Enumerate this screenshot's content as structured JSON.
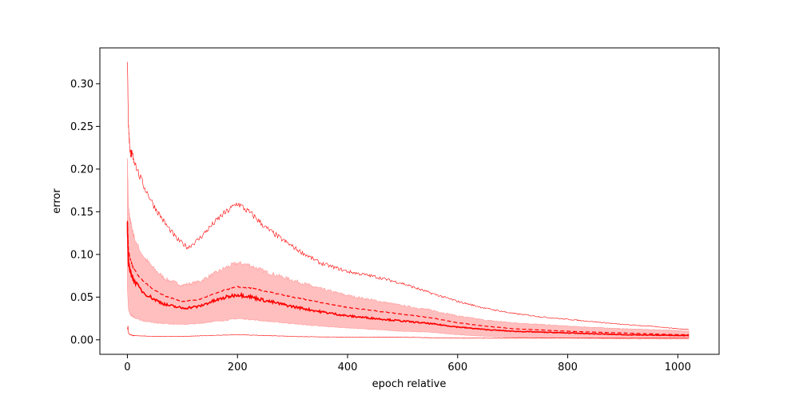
{
  "chart_data": {
    "type": "line",
    "title": "",
    "xlabel": "epoch relative",
    "ylabel": "error",
    "xlim": [
      -50,
      1075
    ],
    "ylim": [
      -0.017,
      0.342
    ],
    "grid": false,
    "legend": "none",
    "x_ticks": [
      0,
      200,
      400,
      600,
      800,
      1000
    ],
    "y_ticks": [
      0.0,
      0.05,
      0.1,
      0.15,
      0.2,
      0.25,
      0.3
    ],
    "y_tick_labels": [
      "0.00",
      "0.05",
      "0.10",
      "0.15",
      "0.20",
      "0.25",
      "0.30"
    ],
    "colors": {
      "line": "#ff0000",
      "band": "#ffbfbf",
      "band_edge": "#ff9a9a"
    },
    "series": [
      {
        "role": "max",
        "style": "thin",
        "x": [
          0,
          2,
          5,
          10,
          20,
          30,
          50,
          70,
          90,
          110,
          130,
          150,
          170,
          190,
          200,
          210,
          230,
          250,
          280,
          310,
          350,
          400,
          450,
          500,
          550,
          600,
          650,
          700,
          750,
          800,
          850,
          900,
          950,
          1000,
          1020
        ],
        "y": [
          0.325,
          0.25,
          0.22,
          0.215,
          0.195,
          0.18,
          0.155,
          0.135,
          0.118,
          0.108,
          0.118,
          0.132,
          0.145,
          0.155,
          0.16,
          0.155,
          0.145,
          0.132,
          0.118,
          0.105,
          0.09,
          0.08,
          0.074,
          0.066,
          0.055,
          0.045,
          0.037,
          0.031,
          0.027,
          0.024,
          0.021,
          0.018,
          0.016,
          0.013,
          0.012
        ]
      },
      {
        "role": "mean",
        "style": "dashed",
        "x": [
          0,
          2,
          5,
          10,
          20,
          30,
          50,
          70,
          100,
          130,
          150,
          180,
          200,
          220,
          250,
          300,
          350,
          400,
          450,
          500,
          550,
          600,
          650,
          700,
          800,
          900,
          1000,
          1020
        ],
        "y": [
          0.14,
          0.105,
          0.095,
          0.085,
          0.075,
          0.068,
          0.058,
          0.051,
          0.045,
          0.047,
          0.052,
          0.059,
          0.062,
          0.061,
          0.057,
          0.05,
          0.044,
          0.038,
          0.034,
          0.03,
          0.026,
          0.02,
          0.016,
          0.013,
          0.01,
          0.008,
          0.006,
          0.006
        ]
      },
      {
        "role": "median",
        "style": "bold",
        "x": [
          0,
          2,
          5,
          10,
          20,
          30,
          50,
          70,
          100,
          130,
          150,
          180,
          200,
          220,
          250,
          300,
          350,
          400,
          450,
          500,
          550,
          600,
          650,
          700,
          800,
          900,
          1000,
          1020
        ],
        "y": [
          0.135,
          0.09,
          0.08,
          0.072,
          0.062,
          0.055,
          0.047,
          0.041,
          0.037,
          0.039,
          0.044,
          0.05,
          0.053,
          0.051,
          0.046,
          0.039,
          0.033,
          0.028,
          0.025,
          0.022,
          0.019,
          0.015,
          0.012,
          0.01,
          0.008,
          0.006,
          0.005,
          0.005
        ]
      },
      {
        "role": "min",
        "style": "thin",
        "x": [
          0,
          1,
          2,
          5,
          10,
          50,
          100,
          150,
          200,
          250,
          300,
          400,
          500,
          600,
          700,
          800,
          900,
          1000,
          1020
        ],
        "y": [
          0.012,
          0.016,
          0.008,
          0.006,
          0.005,
          0.004,
          0.004,
          0.005,
          0.006,
          0.005,
          0.004,
          0.003,
          0.003,
          0.002,
          0.002,
          0.002,
          0.002,
          0.002,
          0.002
        ]
      }
    ],
    "band": {
      "x": [
        0,
        2,
        5,
        10,
        20,
        30,
        50,
        70,
        100,
        130,
        150,
        180,
        200,
        220,
        250,
        300,
        350,
        400,
        450,
        500,
        550,
        600,
        650,
        700,
        800,
        900,
        1000,
        1020
      ],
      "upper": [
        0.215,
        0.155,
        0.14,
        0.125,
        0.108,
        0.097,
        0.082,
        0.071,
        0.064,
        0.068,
        0.075,
        0.085,
        0.09,
        0.088,
        0.08,
        0.07,
        0.06,
        0.052,
        0.046,
        0.04,
        0.035,
        0.028,
        0.023,
        0.02,
        0.016,
        0.013,
        0.011,
        0.01
      ],
      "lower": [
        0.06,
        0.035,
        0.03,
        0.027,
        0.024,
        0.022,
        0.02,
        0.019,
        0.018,
        0.019,
        0.021,
        0.023,
        0.025,
        0.024,
        0.022,
        0.019,
        0.016,
        0.014,
        0.012,
        0.01,
        0.009,
        0.006,
        0.004,
        0.003,
        0.002,
        0.001,
        0.001,
        0.001
      ]
    }
  }
}
